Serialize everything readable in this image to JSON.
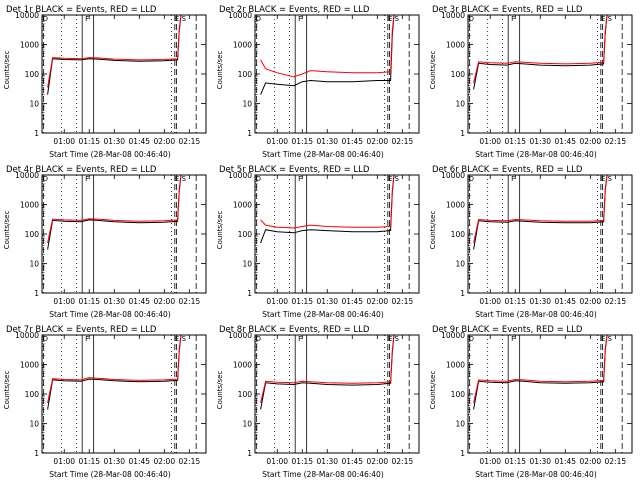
{
  "colors": {
    "events": "#000000",
    "lld": "#ff0000",
    "axis": "#000000"
  },
  "chart_data": [
    {
      "type": "line",
      "title": "Det 1r BLACK = Events, RED = LLD",
      "xlabel": "Start Time (28-Mar-08 00:46:40)",
      "ylabel": "Counts/sec",
      "x_ticks": [
        "01:00",
        "01:15",
        "01:30",
        "01:45",
        "02:00",
        "02:15"
      ],
      "y_ticks": [
        "1",
        "10",
        "100",
        "1000",
        "10000"
      ],
      "y_scale": "log",
      "ylim": [
        1,
        10000
      ],
      "xlim": [
        "00:46:40",
        "02:25"
      ],
      "marker_labels": [
        "D",
        "F",
        "E",
        "S"
      ],
      "series": [
        {
          "name": "Events",
          "x": [
            "00:50",
            "00:53",
            "01:00",
            "01:10",
            "01:15",
            "01:20",
            "01:30",
            "01:45",
            "02:00",
            "02:08",
            "02:09",
            "02:10"
          ],
          "values": [
            20,
            330,
            310,
            300,
            330,
            320,
            290,
            270,
            280,
            300,
            3000,
            10000
          ]
        },
        {
          "name": "LLD",
          "x": [
            "00:50",
            "00:53",
            "01:00",
            "01:10",
            "01:15",
            "01:20",
            "01:30",
            "01:45",
            "02:00",
            "02:08",
            "02:09",
            "02:10"
          ],
          "values": [
            35,
            360,
            340,
            330,
            360,
            350,
            320,
            300,
            310,
            330,
            3500,
            10000
          ]
        }
      ]
    },
    {
      "type": "line",
      "title": "Det 2r BLACK = Events, RED = LLD",
      "xlabel": "Start Time (28-Mar-08 00:46:40)",
      "ylabel": "Counts/sec",
      "x_ticks": [
        "01:00",
        "01:15",
        "01:30",
        "01:45",
        "02:00",
        "02:15"
      ],
      "y_ticks": [
        "1",
        "10",
        "100",
        "1000",
        "10000"
      ],
      "y_scale": "log",
      "ylim": [
        1,
        10000
      ],
      "xlim": [
        "00:46:40",
        "02:25"
      ],
      "marker_labels": [
        "D",
        "F",
        "E",
        "S"
      ],
      "series": [
        {
          "name": "Events",
          "x": [
            "00:50",
            "00:53",
            "01:00",
            "01:10",
            "01:15",
            "01:20",
            "01:30",
            "01:45",
            "02:00",
            "02:08",
            "02:09",
            "02:10"
          ],
          "values": [
            20,
            50,
            45,
            40,
            55,
            60,
            55,
            55,
            60,
            60,
            2000,
            10000
          ]
        },
        {
          "name": "LLD",
          "x": [
            "00:50",
            "00:53",
            "01:00",
            "01:10",
            "01:15",
            "01:20",
            "01:30",
            "01:45",
            "02:00",
            "02:08",
            "02:09",
            "02:10"
          ],
          "values": [
            300,
            150,
            110,
            80,
            100,
            130,
            120,
            110,
            110,
            120,
            3000,
            10000
          ]
        }
      ]
    },
    {
      "type": "line",
      "title": "Det 3r BLACK = Events, RED = LLD",
      "xlabel": "Start Time (28-Mar-08 00:46:40)",
      "ylabel": "Counts/sec",
      "x_ticks": [
        "01:00",
        "01:15",
        "01:30",
        "01:45",
        "02:00",
        "02:15"
      ],
      "y_ticks": [
        "1",
        "10",
        "100",
        "1000",
        "10000"
      ],
      "y_scale": "log",
      "ylim": [
        1,
        10000
      ],
      "xlim": [
        "00:46:40",
        "02:25"
      ],
      "marker_labels": [
        "D",
        "F",
        "E",
        "S"
      ],
      "series": [
        {
          "name": "Events",
          "x": [
            "00:50",
            "00:53",
            "01:00",
            "01:10",
            "01:15",
            "01:20",
            "01:30",
            "01:45",
            "02:00",
            "02:08",
            "02:09",
            "02:10"
          ],
          "values": [
            30,
            230,
            210,
            200,
            230,
            220,
            200,
            190,
            200,
            220,
            2500,
            10000
          ]
        },
        {
          "name": "LLD",
          "x": [
            "00:50",
            "00:53",
            "01:00",
            "01:10",
            "01:15",
            "01:20",
            "01:30",
            "01:45",
            "02:00",
            "02:08",
            "02:09",
            "02:10"
          ],
          "values": [
            50,
            260,
            240,
            230,
            260,
            250,
            230,
            220,
            230,
            250,
            3000,
            10000
          ]
        }
      ]
    },
    {
      "type": "line",
      "title": "Det 4r BLACK = Events, RED = LLD",
      "xlabel": "Start Time (28-Mar-08 00:46:40)",
      "ylabel": "Counts/sec",
      "x_ticks": [
        "01:00",
        "01:15",
        "01:30",
        "01:45",
        "02:00",
        "02:15"
      ],
      "y_ticks": [
        "1",
        "10",
        "100",
        "1000",
        "10000"
      ],
      "y_scale": "log",
      "ylim": [
        1,
        10000
      ],
      "xlim": [
        "00:46:40",
        "02:25"
      ],
      "marker_labels": [
        "D",
        "F",
        "E",
        "S"
      ],
      "series": [
        {
          "name": "Events",
          "x": [
            "00:50",
            "00:53",
            "01:00",
            "01:10",
            "01:15",
            "01:20",
            "01:30",
            "01:45",
            "02:00",
            "02:08",
            "02:09",
            "02:10"
          ],
          "values": [
            30,
            290,
            270,
            260,
            300,
            290,
            260,
            240,
            250,
            270,
            3000,
            10000
          ]
        },
        {
          "name": "LLD",
          "x": [
            "00:50",
            "00:53",
            "01:00",
            "01:10",
            "01:15",
            "01:20",
            "01:30",
            "01:45",
            "02:00",
            "02:08",
            "02:09",
            "02:10"
          ],
          "values": [
            50,
            320,
            300,
            290,
            330,
            320,
            290,
            270,
            280,
            300,
            3500,
            10000
          ]
        }
      ]
    },
    {
      "type": "line",
      "title": "Det 5r BLACK = Events, RED = LLD",
      "xlabel": "Start Time (28-Mar-08 00:46:40)",
      "ylabel": "Counts/sec",
      "x_ticks": [
        "01:00",
        "01:15",
        "01:30",
        "01:45",
        "02:00",
        "02:15"
      ],
      "y_ticks": [
        "1",
        "10",
        "100",
        "1000",
        "10000"
      ],
      "y_scale": "log",
      "ylim": [
        1,
        10000
      ],
      "xlim": [
        "00:46:40",
        "02:25"
      ],
      "marker_labels": [
        "D",
        "F",
        "E",
        "S"
      ],
      "series": [
        {
          "name": "Events",
          "x": [
            "00:50",
            "00:53",
            "01:00",
            "01:10",
            "01:15",
            "01:20",
            "01:30",
            "01:45",
            "02:00",
            "02:08",
            "02:09",
            "02:10"
          ],
          "values": [
            50,
            140,
            120,
            110,
            130,
            140,
            130,
            120,
            120,
            130,
            2500,
            10000
          ]
        },
        {
          "name": "LLD",
          "x": [
            "00:50",
            "00:53",
            "01:00",
            "01:10",
            "01:15",
            "01:20",
            "01:30",
            "01:45",
            "02:00",
            "02:08",
            "02:09",
            "02:10"
          ],
          "values": [
            300,
            200,
            170,
            160,
            180,
            200,
            180,
            170,
            170,
            180,
            3000,
            10000
          ]
        }
      ]
    },
    {
      "type": "line",
      "title": "Det 6r BLACK = Events, RED = LLD",
      "xlabel": "Start Time (28-Mar-08 00:46:40)",
      "ylabel": "Counts/sec",
      "x_ticks": [
        "01:00",
        "01:15",
        "01:30",
        "01:45",
        "02:00",
        "02:15"
      ],
      "y_ticks": [
        "1",
        "10",
        "100",
        "1000",
        "10000"
      ],
      "y_scale": "log",
      "ylim": [
        1,
        10000
      ],
      "xlim": [
        "00:46:40",
        "02:25"
      ],
      "marker_labels": [
        "D",
        "F",
        "E",
        "S"
      ],
      "series": [
        {
          "name": "Events",
          "x": [
            "00:50",
            "00:53",
            "01:00",
            "01:10",
            "01:15",
            "01:20",
            "01:30",
            "01:45",
            "02:00",
            "02:08",
            "02:09",
            "02:10"
          ],
          "values": [
            30,
            280,
            260,
            250,
            280,
            270,
            250,
            240,
            240,
            260,
            3000,
            10000
          ]
        },
        {
          "name": "LLD",
          "x": [
            "00:50",
            "00:53",
            "01:00",
            "01:10",
            "01:15",
            "01:20",
            "01:30",
            "01:45",
            "02:00",
            "02:08",
            "02:09",
            "02:10"
          ],
          "values": [
            50,
            310,
            290,
            280,
            310,
            300,
            280,
            270,
            270,
            290,
            3500,
            10000
          ]
        }
      ]
    },
    {
      "type": "line",
      "title": "Det 7r BLACK = Events, RED = LLD",
      "xlabel": "Start Time (28-Mar-08 00:46:40)",
      "ylabel": "Counts/sec",
      "x_ticks": [
        "01:00",
        "01:15",
        "01:30",
        "01:45",
        "02:00",
        "02:15"
      ],
      "y_ticks": [
        "1",
        "10",
        "100",
        "1000",
        "10000"
      ],
      "y_scale": "log",
      "ylim": [
        1,
        10000
      ],
      "xlim": [
        "00:46:40",
        "02:25"
      ],
      "marker_labels": [
        "D",
        "F",
        "E",
        "S"
      ],
      "series": [
        {
          "name": "Events",
          "x": [
            "00:50",
            "00:53",
            "01:00",
            "01:10",
            "01:15",
            "01:20",
            "01:30",
            "01:45",
            "02:00",
            "02:08",
            "02:09",
            "02:10"
          ],
          "values": [
            30,
            300,
            280,
            270,
            320,
            310,
            280,
            260,
            270,
            290,
            3000,
            10000
          ]
        },
        {
          "name": "LLD",
          "x": [
            "00:50",
            "00:53",
            "01:00",
            "01:10",
            "01:15",
            "01:20",
            "01:30",
            "01:45",
            "02:00",
            "02:08",
            "02:09",
            "02:10"
          ],
          "values": [
            50,
            330,
            310,
            300,
            360,
            340,
            310,
            290,
            300,
            320,
            3500,
            10000
          ]
        }
      ]
    },
    {
      "type": "line",
      "title": "Det 8r BLACK = Events, RED = LLD",
      "xlabel": "Start Time (28-Mar-08 00:46:40)",
      "ylabel": "Counts/sec",
      "x_ticks": [
        "01:00",
        "01:15",
        "01:30",
        "01:45",
        "02:00",
        "02:15"
      ],
      "y_ticks": [
        "1",
        "10",
        "100",
        "1000",
        "10000"
      ],
      "y_scale": "log",
      "ylim": [
        1,
        10000
      ],
      "xlim": [
        "00:46:40",
        "02:25"
      ],
      "marker_labels": [
        "D",
        "F",
        "E",
        "S"
      ],
      "series": [
        {
          "name": "Events",
          "x": [
            "00:50",
            "00:53",
            "01:00",
            "01:10",
            "01:15",
            "01:20",
            "01:30",
            "01:45",
            "02:00",
            "02:08",
            "02:09",
            "02:10"
          ],
          "values": [
            30,
            240,
            220,
            210,
            240,
            230,
            210,
            200,
            210,
            230,
            2500,
            10000
          ]
        },
        {
          "name": "LLD",
          "x": [
            "00:50",
            "00:53",
            "01:00",
            "01:10",
            "01:15",
            "01:20",
            "01:30",
            "01:45",
            "02:00",
            "02:08",
            "02:09",
            "02:10"
          ],
          "values": [
            50,
            270,
            250,
            240,
            270,
            260,
            240,
            230,
            240,
            260,
            3000,
            10000
          ]
        }
      ]
    },
    {
      "type": "line",
      "title": "Det 9r BLACK = Events, RED = LLD",
      "xlabel": "Start Time (28-Mar-08 00:46:40)",
      "ylabel": "Counts/sec",
      "x_ticks": [
        "01:00",
        "01:15",
        "01:30",
        "01:45",
        "02:00",
        "02:15"
      ],
      "y_ticks": [
        "1",
        "10",
        "100",
        "1000",
        "10000"
      ],
      "y_scale": "log",
      "ylim": [
        1,
        10000
      ],
      "xlim": [
        "00:46:40",
        "02:25"
      ],
      "marker_labels": [
        "D",
        "F",
        "E",
        "S"
      ],
      "series": [
        {
          "name": "Events",
          "x": [
            "00:50",
            "00:53",
            "01:00",
            "01:10",
            "01:15",
            "01:20",
            "01:30",
            "01:45",
            "02:00",
            "02:08",
            "02:09",
            "02:10"
          ],
          "values": [
            30,
            270,
            250,
            240,
            280,
            270,
            240,
            230,
            240,
            260,
            3000,
            10000
          ]
        },
        {
          "name": "LLD",
          "x": [
            "00:50",
            "00:53",
            "01:00",
            "01:10",
            "01:15",
            "01:20",
            "01:30",
            "01:45",
            "02:00",
            "02:08",
            "02:09",
            "02:10"
          ],
          "values": [
            50,
            300,
            280,
            270,
            310,
            300,
            270,
            260,
            270,
            290,
            3500,
            10000
          ]
        }
      ]
    }
  ]
}
